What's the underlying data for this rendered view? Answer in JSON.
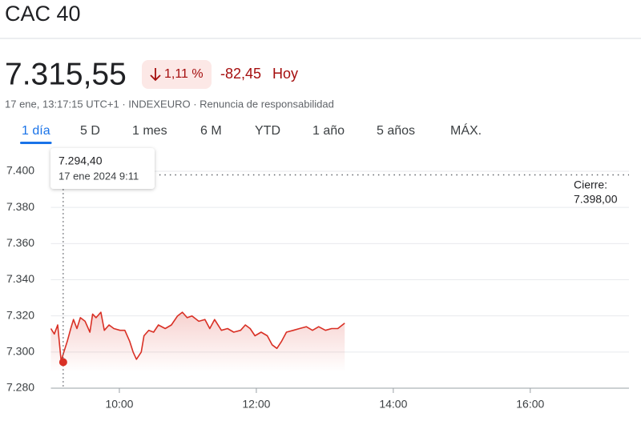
{
  "header": {
    "title": "CAC 40",
    "price": "7.315,55",
    "change_pct": "1,11 %",
    "change": "-82,45",
    "period": "Hoy",
    "info": "17 ene, 13:17:15 UTC+1 · INDEXEURO · Renuncia de responsabilidad",
    "tabs": [
      "1 día",
      "5 D",
      "1 mes",
      "6 M",
      "YTD",
      "1 año",
      "5 años",
      "MÁX."
    ],
    "active_tab": 0
  },
  "chart_data": {
    "type": "line",
    "color": "#d93025",
    "x": [
      9.0,
      9.05,
      9.1,
      9.15,
      9.19,
      9.24,
      9.29,
      9.33,
      9.38,
      9.43,
      9.5,
      9.57,
      9.61,
      9.66,
      9.73,
      9.78,
      9.85,
      9.92,
      10.01,
      10.08,
      10.15,
      10.2,
      10.25,
      10.32,
      10.36,
      10.43,
      10.5,
      10.57,
      10.67,
      10.76,
      10.85,
      10.92,
      10.99,
      11.06,
      11.16,
      11.25,
      11.32,
      11.39,
      11.49,
      11.58,
      11.67,
      11.77,
      11.84,
      11.91,
      11.98,
      12.07,
      12.16,
      12.23,
      12.3,
      12.37,
      12.44,
      12.54,
      12.63,
      12.73,
      12.82,
      12.91,
      13.01,
      13.1,
      13.19,
      13.29
    ],
    "values": [
      7313,
      7310,
      7315,
      7295,
      7300,
      7306,
      7313,
      7318,
      7313,
      7319,
      7317,
      7311,
      7321,
      7319,
      7322,
      7312,
      7315,
      7313,
      7312,
      7312,
      7306,
      7300,
      7296,
      7300,
      7309,
      7312,
      7311,
      7315,
      7313,
      7315,
      7320,
      7322,
      7319,
      7320,
      7317,
      7318,
      7313,
      7318,
      7312,
      7313,
      7311,
      7312,
      7315,
      7313,
      7309,
      7311,
      7309,
      7304,
      7302,
      7306,
      7311,
      7312,
      7313,
      7314,
      7312,
      7314,
      7312,
      7313,
      7313,
      7316
    ],
    "xlim": [
      9,
      17.5
    ],
    "xticks": [
      {
        "value": 10,
        "label": "10:00"
      },
      {
        "value": 12,
        "label": "12:00"
      },
      {
        "value": 14,
        "label": "14:00"
      },
      {
        "value": 16,
        "label": "16:00"
      }
    ],
    "ylim": [
      7280,
      7400
    ],
    "yticks": [
      {
        "value": 7280,
        "label": "7.280"
      },
      {
        "value": 7300,
        "label": "7.300"
      },
      {
        "value": 7320,
        "label": "7.320"
      },
      {
        "value": 7340,
        "label": "7.340"
      },
      {
        "value": 7360,
        "label": "7.360"
      },
      {
        "value": 7380,
        "label": "7.380"
      },
      {
        "value": 7400,
        "label": "7.400"
      }
    ],
    "grid": true,
    "previous_close": {
      "title": "Cierre:",
      "value": 7398,
      "label": "7.398,00"
    },
    "hover": {
      "x": 9.18,
      "value": 7294.4,
      "value_label": "7.294,40",
      "date_label": "17 ene 2024 9:11"
    }
  }
}
